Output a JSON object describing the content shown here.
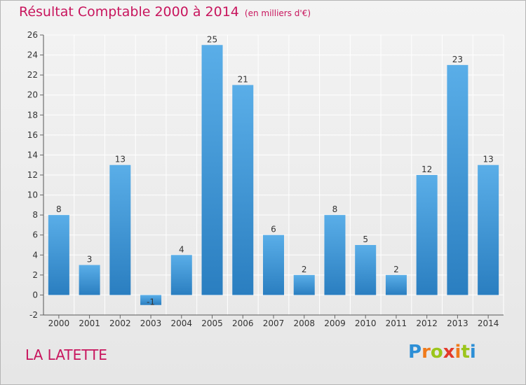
{
  "header": {
    "title": "Résultat Comptable 2000 à 2014",
    "unit": "(en milliers d'€)"
  },
  "footer": {
    "place": "LA LATETTE",
    "logo_parts": [
      "P",
      "r",
      "o",
      "x",
      "i",
      "t",
      "i"
    ]
  },
  "colors": {
    "title": "#c8155d",
    "bar_top": "#5aaee8",
    "bar_bottom": "#2a7ec0",
    "grid": "#ffffff",
    "logo_p": "#2d8fd6",
    "logo_r": "#f07a1a",
    "logo_o": "#9bc51b",
    "logo_x": "#e33a2b"
  },
  "chart_data": {
    "type": "bar",
    "title": "Résultat Comptable 2000 à 2014",
    "xlabel": "",
    "ylabel": "",
    "categories": [
      "2000",
      "2001",
      "2002",
      "2003",
      "2004",
      "2005",
      "2006",
      "2007",
      "2008",
      "2009",
      "2010",
      "2011",
      "2012",
      "2013",
      "2014"
    ],
    "values": [
      8,
      3,
      13,
      -1,
      4,
      25,
      21,
      6,
      2,
      8,
      5,
      2,
      12,
      23,
      13
    ],
    "ylim": [
      -2,
      26
    ],
    "yticks": [
      -2,
      0,
      2,
      4,
      6,
      8,
      10,
      12,
      14,
      16,
      18,
      20,
      22,
      24,
      26
    ],
    "grid": true
  }
}
